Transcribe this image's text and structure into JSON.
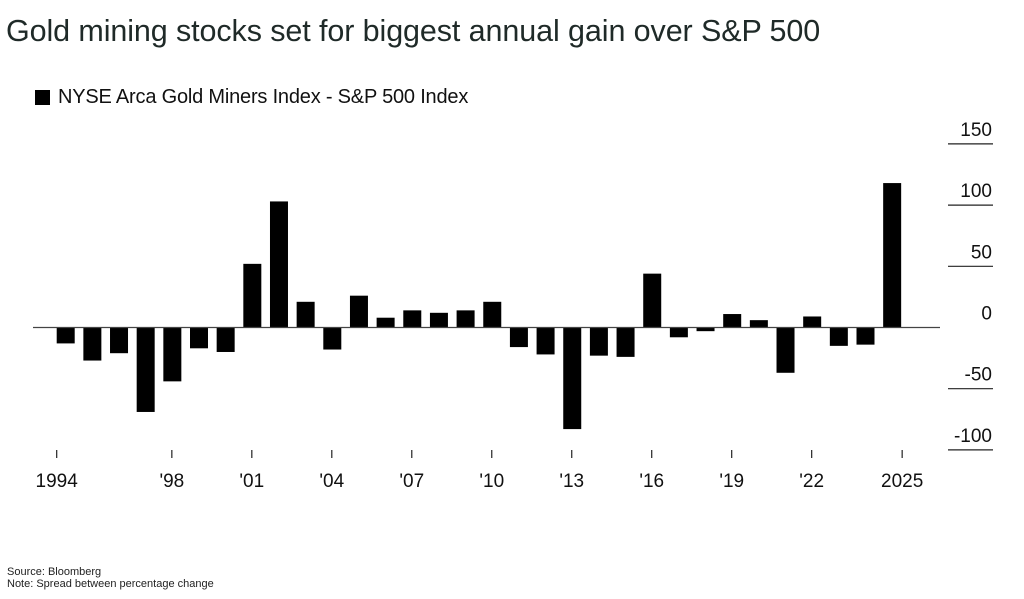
{
  "title": "Gold mining stocks set for biggest annual gain over S&P 500",
  "footer": {
    "source": "Source: Bloomberg",
    "note": "Note: Spread between percentage change"
  },
  "chart_data": {
    "type": "bar",
    "title": "Gold mining stocks set for biggest annual gain over S&P 500",
    "xlabel": "",
    "ylabel": "",
    "legend": {
      "position": "top-left",
      "entries": [
        {
          "name": "NYSE Arca Gold Miners Index - S&P 500 Index",
          "color": "#000000"
        }
      ]
    },
    "ylim": [
      -100,
      150
    ],
    "yticks": [
      150,
      100,
      50,
      0,
      -50,
      -100
    ],
    "ytick_labels": [
      "150",
      "100",
      "50",
      "0",
      "-50",
      "-100"
    ],
    "yaxis_side": "right",
    "xticks": [
      {
        "year": 1994,
        "label": "1994"
      },
      {
        "year": 1998,
        "label": "'98"
      },
      {
        "year": 2001,
        "label": "'01"
      },
      {
        "year": 2004,
        "label": "'04"
      },
      {
        "year": 2007,
        "label": "'07"
      },
      {
        "year": 2010,
        "label": "'10"
      },
      {
        "year": 2013,
        "label": "'13"
      },
      {
        "year": 2016,
        "label": "'16"
      },
      {
        "year": 2019,
        "label": "'19"
      },
      {
        "year": 2022,
        "label": "'22"
      },
      {
        "year": 2025,
        "label": "2025"
      }
    ],
    "categories": [
      1994,
      1995,
      1996,
      1997,
      1998,
      1999,
      2000,
      2001,
      2002,
      2003,
      2004,
      2005,
      2006,
      2007,
      2008,
      2009,
      2010,
      2011,
      2012,
      2013,
      2014,
      2015,
      2016,
      2017,
      2018,
      2019,
      2020,
      2021,
      2022,
      2023,
      2024,
      2025
    ],
    "series": [
      {
        "name": "NYSE Arca Gold Miners Index - S&P 500 Index",
        "color": "#000000",
        "values": [
          -13,
          -27,
          -21,
          -69,
          -44,
          -17,
          -20,
          52,
          103,
          21,
          -18,
          26,
          8,
          14,
          12,
          14,
          21,
          -16,
          -22,
          -83,
          -23,
          -24,
          44,
          -8,
          -3,
          11,
          6,
          -37,
          9,
          -15,
          -14,
          118
        ]
      }
    ],
    "grid": false,
    "source": "Source: Bloomberg",
    "note": "Note: Spread between percentage change"
  }
}
